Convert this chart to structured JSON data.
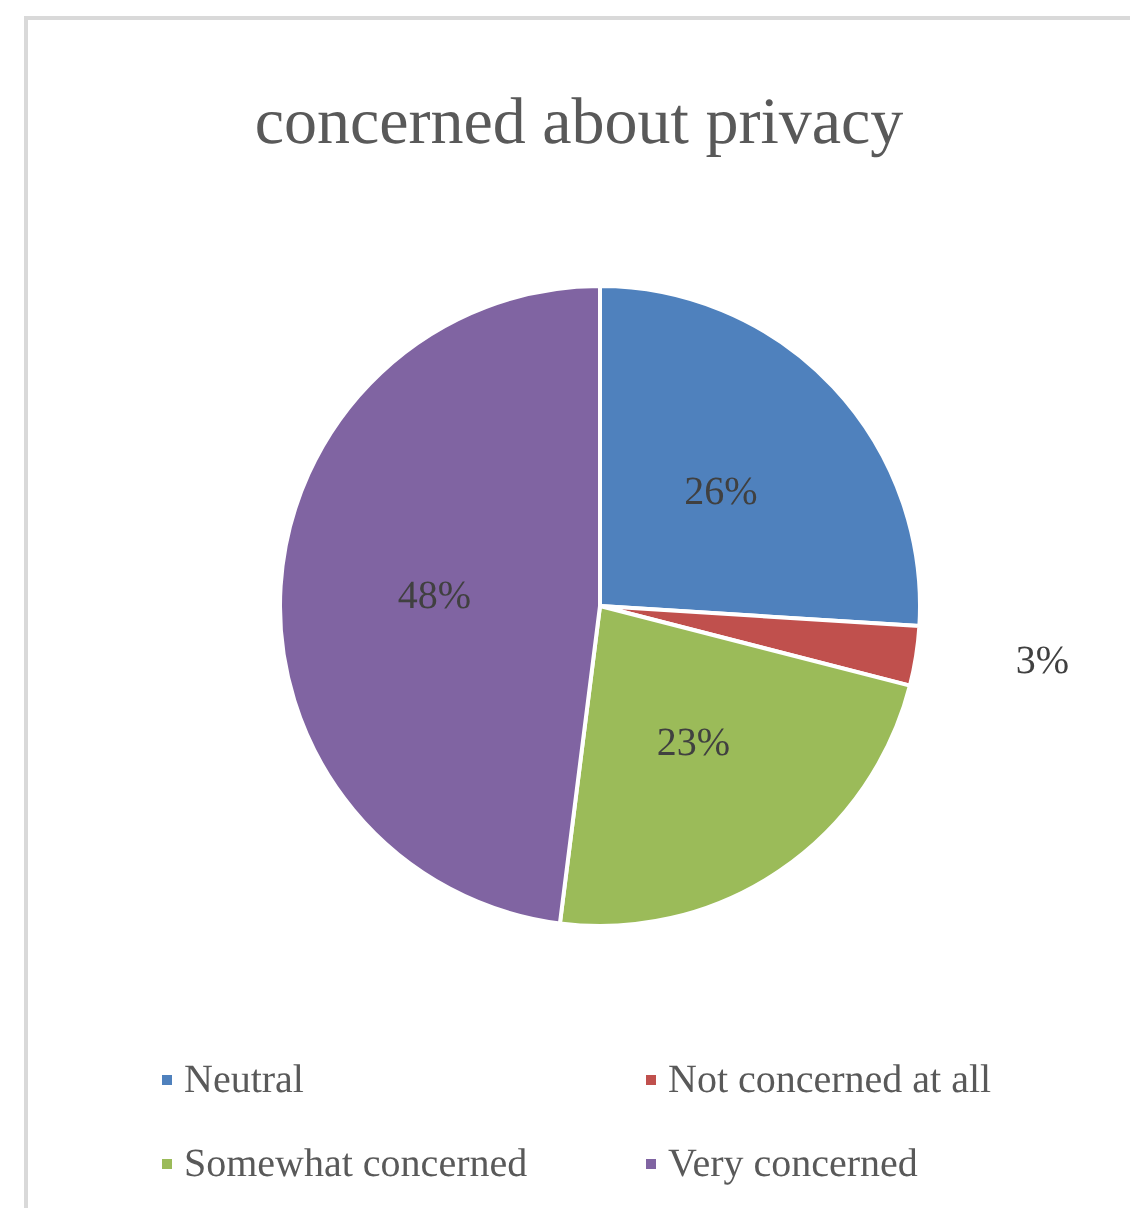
{
  "chart_data": {
    "type": "pie",
    "title": "concerned about privacy",
    "categories": [
      "Neutral",
      "Not concerned at all",
      "Somewhat concerned",
      "Very concerned"
    ],
    "values": [
      26,
      3,
      23,
      48
    ],
    "colors": [
      "#4f81bd",
      "#c0504d",
      "#9bbb59",
      "#8064a2"
    ],
    "value_labels": [
      "26%",
      "3%",
      "23%",
      "48%"
    ],
    "legend": "bottom"
  }
}
